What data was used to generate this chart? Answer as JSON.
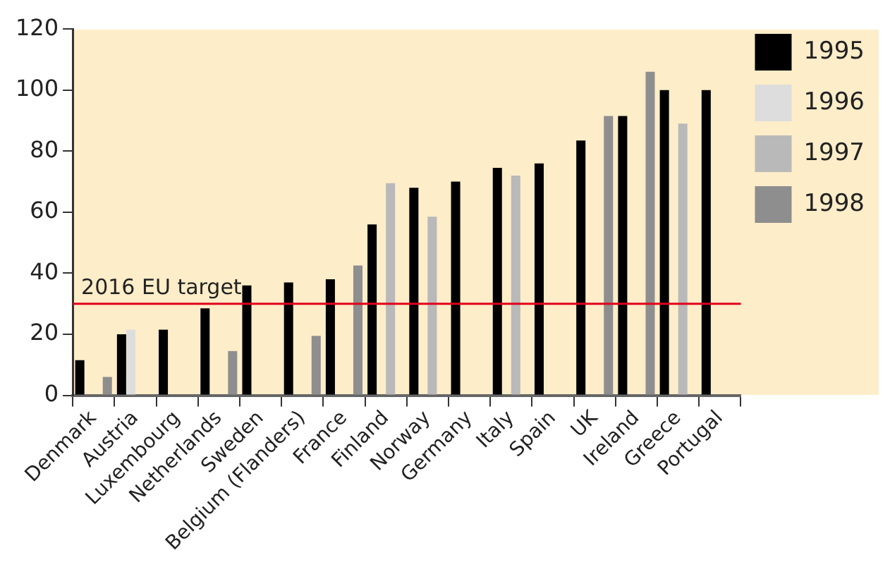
{
  "chart_data": {
    "type": "bar",
    "categories": [
      "Denmark",
      "Austria",
      "Luxembourg",
      "Netherlands",
      "Sweden",
      "Belgium (Flanders)",
      "France",
      "Finland",
      "Norway",
      "Germany",
      "Italy",
      "Spain",
      "UK",
      "Ireland",
      "Greece",
      "Portugal"
    ],
    "series": [
      {
        "name": "1995",
        "color": "#000000",
        "values": [
          11.5,
          20,
          21.5,
          28.5,
          36,
          37,
          38,
          56,
          68,
          70,
          74.5,
          76,
          83.5,
          91.5,
          100,
          100
        ]
      },
      {
        "name": "1996",
        "color": "#dddddd",
        "values": [
          null,
          21.5,
          null,
          null,
          null,
          null,
          null,
          null,
          null,
          null,
          null,
          null,
          null,
          null,
          null,
          null
        ]
      },
      {
        "name": "1997",
        "color": "#b9b9b9",
        "values": [
          null,
          null,
          null,
          null,
          null,
          null,
          null,
          69.5,
          58.5,
          null,
          72,
          null,
          null,
          null,
          89,
          null
        ]
      },
      {
        "name": "1998",
        "color": "#8e8e8e",
        "values": [
          6,
          null,
          null,
          14.5,
          null,
          19.5,
          42.5,
          null,
          null,
          null,
          null,
          null,
          91.5,
          106,
          null,
          null
        ]
      }
    ],
    "ylim": [
      0,
      120
    ],
    "yticks": [
      0,
      20,
      40,
      60,
      80,
      100,
      120
    ],
    "grid": false,
    "legend": "right",
    "ref_lines": [
      {
        "axis": "y",
        "value": 30,
        "label": "2016 EU target",
        "color": "#e0001b"
      }
    ]
  }
}
